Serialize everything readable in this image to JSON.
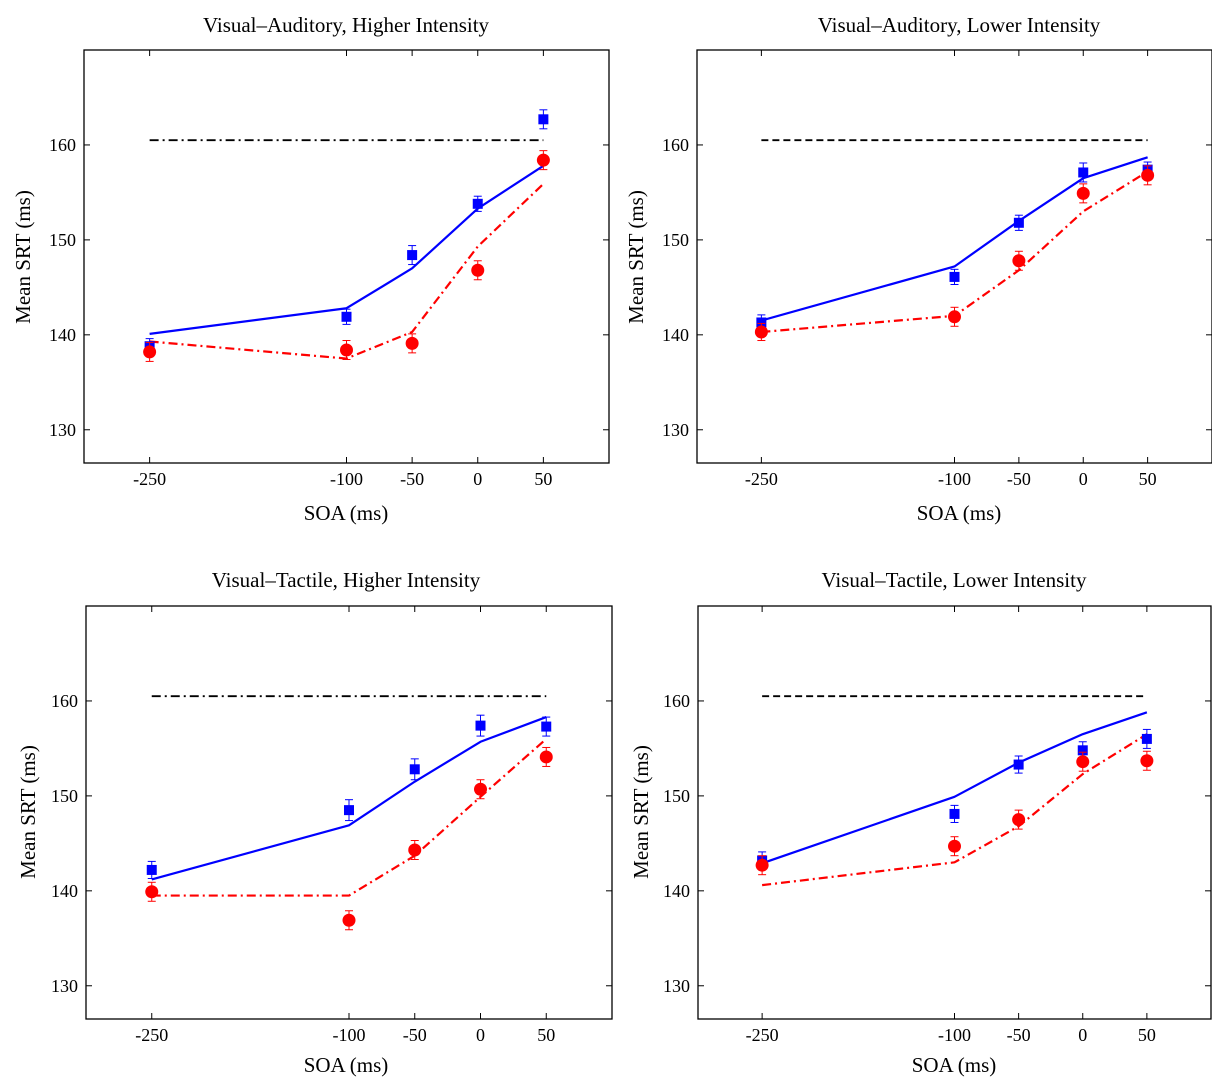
{
  "figure": {
    "colors": {
      "model_blue": "#0000ff",
      "model_red": "#ff0000",
      "baseline": "#000000",
      "axes": "#000000",
      "background": "#ffffff"
    }
  },
  "chart_data": [
    {
      "type": "line",
      "title": "Visual–Auditory, Higher Intensity",
      "xlabel": "SOA (ms)",
      "ylabel": "Mean SRT (ms)",
      "xlim": [
        -300,
        100
      ],
      "ylim": [
        126.5,
        170
      ],
      "xticks": [
        -250,
        -100,
        -50,
        0,
        50
      ],
      "yticks": [
        130,
        140,
        150,
        160
      ],
      "grid": false,
      "legend": "none",
      "baseline": {
        "value": 160.5,
        "x": [
          -250,
          50
        ],
        "style": "dash-dot"
      },
      "series": [
        {
          "kind": "model-line",
          "color": "#0000ff",
          "style": "solid",
          "x": [
            -250,
            -100,
            -50,
            0,
            50
          ],
          "y": [
            140.1,
            142.8,
            147.0,
            153.3,
            157.8
          ]
        },
        {
          "kind": "model-line",
          "color": "#ff0000",
          "style": "dash-dot",
          "x": [
            -250,
            -100,
            -50,
            0,
            50
          ],
          "y": [
            139.3,
            137.5,
            140.3,
            149.3,
            155.9
          ]
        },
        {
          "kind": "data",
          "marker": "square",
          "color": "#0000ff",
          "x": [
            -250,
            -100,
            -50,
            0,
            50
          ],
          "y": [
            138.8,
            141.9,
            148.4,
            153.8,
            162.7
          ],
          "err": [
            0.8,
            0.8,
            1.0,
            0.8,
            1.0
          ]
        },
        {
          "kind": "data",
          "marker": "circle",
          "color": "#ff0000",
          "x": [
            -250,
            -100,
            -50,
            0,
            50
          ],
          "y": [
            138.2,
            138.4,
            139.1,
            146.8,
            158.4
          ],
          "err": [
            1.0,
            1.0,
            1.0,
            1.0,
            1.0
          ]
        }
      ]
    },
    {
      "type": "line",
      "title": "Visual–Auditory, Lower Intensity",
      "xlabel": "SOA (ms)",
      "ylabel": "Mean SRT (ms)",
      "xlim": [
        -300,
        100
      ],
      "ylim": [
        126.5,
        170
      ],
      "xticks": [
        -250,
        -100,
        -50,
        0,
        50
      ],
      "yticks": [
        130,
        140,
        150,
        160
      ],
      "grid": false,
      "legend": "none",
      "baseline": {
        "value": 160.5,
        "x": [
          -250,
          50
        ],
        "style": "dashed"
      },
      "series": [
        {
          "kind": "model-line",
          "color": "#0000ff",
          "style": "solid",
          "x": [
            -250,
            -100,
            -50,
            0,
            50
          ],
          "y": [
            141.5,
            147.2,
            152.0,
            156.5,
            158.7
          ]
        },
        {
          "kind": "model-line",
          "color": "#ff0000",
          "style": "dash-dot",
          "x": [
            -250,
            -100,
            -50,
            0,
            50
          ],
          "y": [
            140.3,
            142.0,
            146.8,
            153.0,
            157.2
          ]
        },
        {
          "kind": "data",
          "marker": "square",
          "color": "#0000ff",
          "x": [
            -250,
            -100,
            -50,
            0,
            50
          ],
          "y": [
            141.3,
            146.1,
            151.8,
            157.1,
            157.4
          ],
          "err": [
            0.8,
            0.8,
            0.8,
            1.0,
            0.8
          ]
        },
        {
          "kind": "data",
          "marker": "circle",
          "color": "#ff0000",
          "x": [
            -250,
            -100,
            -50,
            0,
            50
          ],
          "y": [
            140.3,
            141.9,
            147.8,
            154.9,
            156.8
          ],
          "err": [
            0.9,
            1.0,
            1.0,
            1.0,
            1.0
          ]
        }
      ]
    },
    {
      "type": "line",
      "title": "Visual–Tactile, Higher Intensity",
      "xlabel": "SOA (ms)",
      "ylabel": "Mean SRT (ms)",
      "xlim": [
        -300,
        100
      ],
      "ylim": [
        126.5,
        170
      ],
      "xticks": [
        -250,
        -100,
        -50,
        0,
        50
      ],
      "yticks": [
        130,
        140,
        150,
        160
      ],
      "grid": false,
      "legend": "none",
      "baseline": {
        "value": 160.5,
        "x": [
          -250,
          50
        ],
        "style": "dash-dot"
      },
      "series": [
        {
          "kind": "model-line",
          "color": "#0000ff",
          "style": "solid",
          "x": [
            -250,
            -100,
            -50,
            0,
            50
          ],
          "y": [
            141.2,
            146.9,
            151.5,
            155.7,
            158.3
          ]
        },
        {
          "kind": "model-line",
          "color": "#ff0000",
          "style": "dash-dot",
          "x": [
            -250,
            -100,
            -50,
            0,
            50
          ],
          "y": [
            139.5,
            139.5,
            143.7,
            149.9,
            156.0
          ]
        },
        {
          "kind": "data",
          "marker": "square",
          "color": "#0000ff",
          "x": [
            -250,
            -100,
            -50,
            0,
            50
          ],
          "y": [
            142.2,
            148.5,
            152.8,
            157.4,
            157.3
          ],
          "err": [
            0.9,
            1.1,
            1.1,
            1.1,
            1.0
          ]
        },
        {
          "kind": "data",
          "marker": "circle",
          "color": "#ff0000",
          "x": [
            -250,
            -100,
            -50,
            0,
            50
          ],
          "y": [
            139.9,
            136.9,
            144.3,
            150.7,
            154.1
          ],
          "err": [
            1.0,
            1.0,
            1.0,
            1.0,
            1.0
          ]
        }
      ]
    },
    {
      "type": "line",
      "title": "Visual–Tactile, Lower Intensity",
      "xlabel": "SOA (ms)",
      "ylabel": "Mean SRT (ms)",
      "xlim": [
        -300,
        100
      ],
      "ylim": [
        126.5,
        170
      ],
      "xticks": [
        -250,
        -100,
        -50,
        0,
        50
      ],
      "yticks": [
        130,
        140,
        150,
        160
      ],
      "grid": false,
      "legend": "none",
      "baseline": {
        "value": 160.5,
        "x": [
          -250,
          50
        ],
        "style": "dashed"
      },
      "series": [
        {
          "kind": "model-line",
          "color": "#0000ff",
          "style": "solid",
          "x": [
            -250,
            -100,
            -50,
            0,
            50
          ],
          "y": [
            142.9,
            149.9,
            153.5,
            156.5,
            158.8
          ]
        },
        {
          "kind": "model-line",
          "color": "#ff0000",
          "style": "dash-dot",
          "x": [
            -250,
            -100,
            -50,
            0,
            50
          ],
          "y": [
            140.6,
            143.0,
            146.8,
            152.3,
            156.5
          ]
        },
        {
          "kind": "data",
          "marker": "square",
          "color": "#0000ff",
          "x": [
            -250,
            -100,
            -50,
            0,
            50
          ],
          "y": [
            143.2,
            148.1,
            153.3,
            154.8,
            156.0
          ],
          "err": [
            0.9,
            0.9,
            0.9,
            0.9,
            1.0
          ]
        },
        {
          "kind": "data",
          "marker": "circle",
          "color": "#ff0000",
          "x": [
            -250,
            -100,
            -50,
            0,
            50
          ],
          "y": [
            142.7,
            144.7,
            147.5,
            153.6,
            153.7
          ],
          "err": [
            1.0,
            1.0,
            1.0,
            1.0,
            1.0
          ]
        }
      ]
    }
  ]
}
